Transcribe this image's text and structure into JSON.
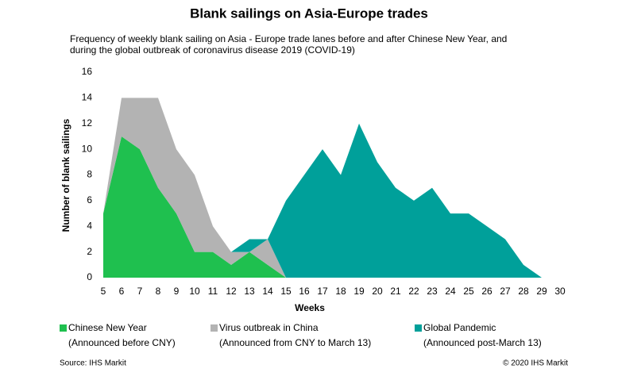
{
  "chart_data": {
    "type": "stacked_area",
    "title": "Blank sailings on Asia-Europe trades",
    "subtitle": "Frequency of weekly blank sailing on Asia - Europe trade lanes before and after Chinese New Year, and during the global outbreak of coronavirus disease 2019 (COVID-19)",
    "x_label": "Weeks",
    "y_label": "Number of blank sailings",
    "x": [
      5,
      6,
      7,
      8,
      9,
      10,
      11,
      12,
      13,
      14,
      15,
      16,
      17,
      18,
      19,
      20,
      21,
      22,
      23,
      24,
      25,
      26,
      27,
      28,
      29
    ],
    "series": [
      {
        "name": "Chinese New Year",
        "description": "(Announced before CNY)",
        "color": "#1fc04f",
        "values": [
          5,
          11,
          10,
          7,
          5,
          2,
          2,
          1,
          2,
          1,
          0,
          0,
          0,
          0,
          0,
          0,
          0,
          0,
          0,
          0,
          0,
          0,
          0,
          0,
          0
        ]
      },
      {
        "name": "Virus outbreak in China",
        "description": "(Announced from CNY to March 13)",
        "color": "#b3b3b3",
        "values": [
          0,
          3,
          4,
          7,
          5,
          6,
          2,
          1,
          0,
          2,
          0,
          0,
          0,
          0,
          0,
          0,
          0,
          0,
          0,
          0,
          0,
          0,
          0,
          0,
          0
        ]
      },
      {
        "name": "Global Pandemic",
        "description": "(Announced post-March 13)",
        "color": "#00a09a",
        "values": [
          0,
          0,
          0,
          0,
          0,
          0,
          0,
          0,
          1,
          0,
          6,
          8,
          10,
          8,
          12,
          9,
          7,
          6,
          7,
          5,
          5,
          4,
          3,
          1,
          0
        ]
      }
    ],
    "xlim": [
      5,
      30
    ],
    "xticks": [
      5,
      6,
      7,
      8,
      9,
      10,
      11,
      12,
      13,
      14,
      15,
      16,
      17,
      18,
      19,
      20,
      21,
      22,
      23,
      24,
      25,
      26,
      27,
      28,
      29,
      30
    ],
    "ylim": [
      0,
      16
    ],
    "yticks": [
      0,
      2,
      4,
      6,
      8,
      10,
      12,
      14,
      16
    ],
    "source": "Source: IHS Markit",
    "copyright": "© 2020 IHS Markit"
  }
}
